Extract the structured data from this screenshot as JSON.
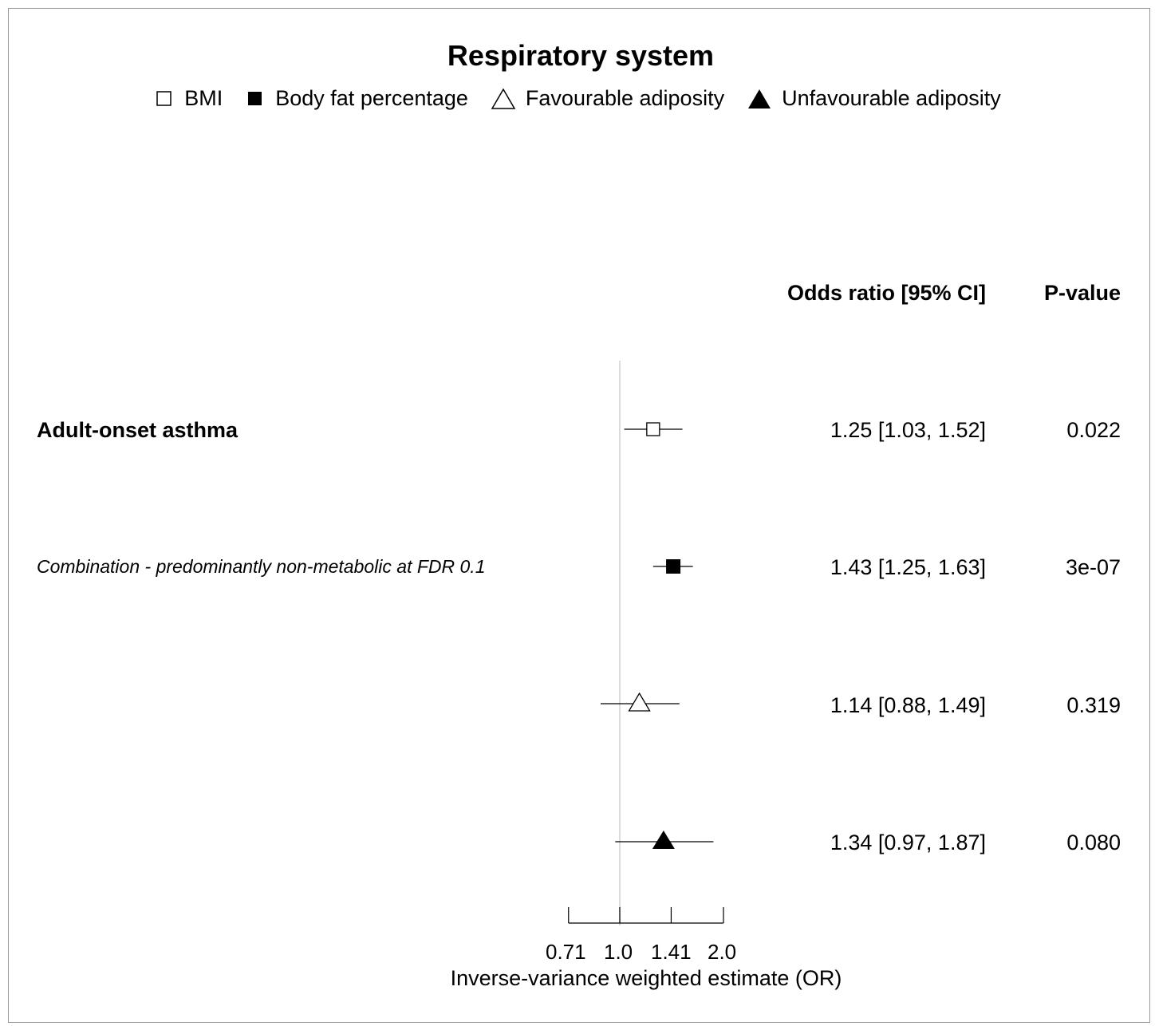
{
  "chart_data": {
    "type": "forest",
    "title": "Respiratory system",
    "legend": [
      {
        "label": "BMI",
        "marker": "square-open"
      },
      {
        "label": "Body fat percentage",
        "marker": "square-filled"
      },
      {
        "label": "Favourable adiposity",
        "marker": "triangle-open"
      },
      {
        "label": "Unfavourable adiposity",
        "marker": "triangle-filled"
      }
    ],
    "column_headers": {
      "or": "Odds ratio [95% CI]",
      "p": "P-value"
    },
    "outcome": "Adult-onset asthma",
    "subtitle": "Combination - predominantly non-metabolic at FDR 0.1",
    "rows": [
      {
        "marker": "square-open",
        "or": 1.25,
        "lo": 1.03,
        "hi": 1.52,
        "or_text": "1.25 [1.03, 1.52]",
        "p_text": "0.022"
      },
      {
        "marker": "square-filled",
        "or": 1.43,
        "lo": 1.25,
        "hi": 1.63,
        "or_text": "1.43 [1.25, 1.63]",
        "p_text": "3e-07"
      },
      {
        "marker": "triangle-open",
        "or": 1.14,
        "lo": 0.88,
        "hi": 1.49,
        "or_text": "1.14 [0.88, 1.49]",
        "p_text": "0.319"
      },
      {
        "marker": "triangle-filled",
        "or": 1.34,
        "lo": 0.97,
        "hi": 1.87,
        "or_text": "1.34 [0.97, 1.87]",
        "p_text": "0.080"
      }
    ],
    "x_scale": "log",
    "xticks": [
      "0.71",
      "1.0",
      "1.41",
      "2.0"
    ],
    "xlabel": "Inverse-variance weighted estimate (OR)",
    "reference_line": 1.0
  }
}
